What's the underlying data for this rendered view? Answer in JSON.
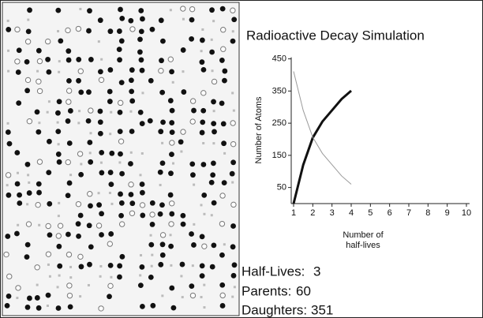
{
  "chart_data": {
    "type": "line",
    "title": "Radioactive Decay Simulation",
    "ylabel": "Number of Atoms",
    "xlabel": [
      "Number of",
      "half-lives"
    ],
    "x": [
      1,
      1.5,
      2,
      2.5,
      3,
      3.5,
      4
    ],
    "series": [
      {
        "color": "#111111",
        "width": 3,
        "values": [
          0,
          120,
          205,
          255,
          290,
          325,
          351
        ]
      },
      {
        "color": "#9a9a9a",
        "width": 1,
        "values": [
          411,
          290,
          206,
          156,
          121,
          86,
          60
        ]
      }
    ],
    "xlim": [
      1,
      10
    ],
    "xticks": [
      1,
      2,
      3,
      4,
      5,
      6,
      7,
      8,
      9,
      10
    ],
    "ylim": [
      0,
      450
    ],
    "yticks": [
      50,
      150,
      250,
      350,
      450
    ]
  },
  "status": {
    "half_lives_label": "Half-Lives:",
    "half_lives": 3,
    "parents_label": "Parents:",
    "parents": 60,
    "daughters_label": "Daughters:",
    "daughters": 351
  }
}
